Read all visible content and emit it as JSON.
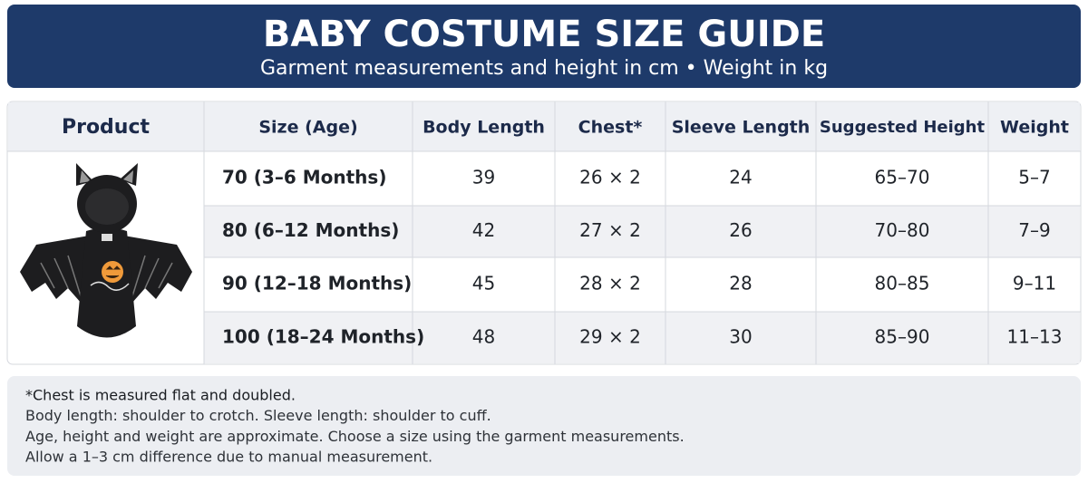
{
  "header": {
    "title": "BABY COSTUME SIZE GUIDE",
    "subtitle": "Garment measurements and height in cm • Weight in kg"
  },
  "table": {
    "columns": [
      "Product",
      "Size (Age)",
      "Body Length",
      "Chest*",
      "Sleeve Length",
      "Suggested Height",
      "Weight"
    ],
    "rows": [
      [
        "70 (3–6 Months)",
        "39",
        "26 × 2",
        "24",
        "65–70",
        "5–7"
      ],
      [
        "80 (6–12 Months)",
        "42",
        "27 × 2",
        "26",
        "70–80",
        "7–9"
      ],
      [
        "90 (12–18 Months)",
        "45",
        "28 × 2",
        "28",
        "80–85",
        "9–11"
      ],
      [
        "100 (18–24 Months)",
        "48",
        "29 × 2",
        "30",
        "85–90",
        "11–13"
      ]
    ]
  },
  "notes": [
    "*Chest is measured flat and doubled.",
    "Body length: shoulder to crotch. Sleeve length: shoulder to cuff.",
    "Age, height and weight are approximate. Choose a size using the garment measurements.",
    "Allow a 1–3 cm difference due to manual measurement."
  ]
}
